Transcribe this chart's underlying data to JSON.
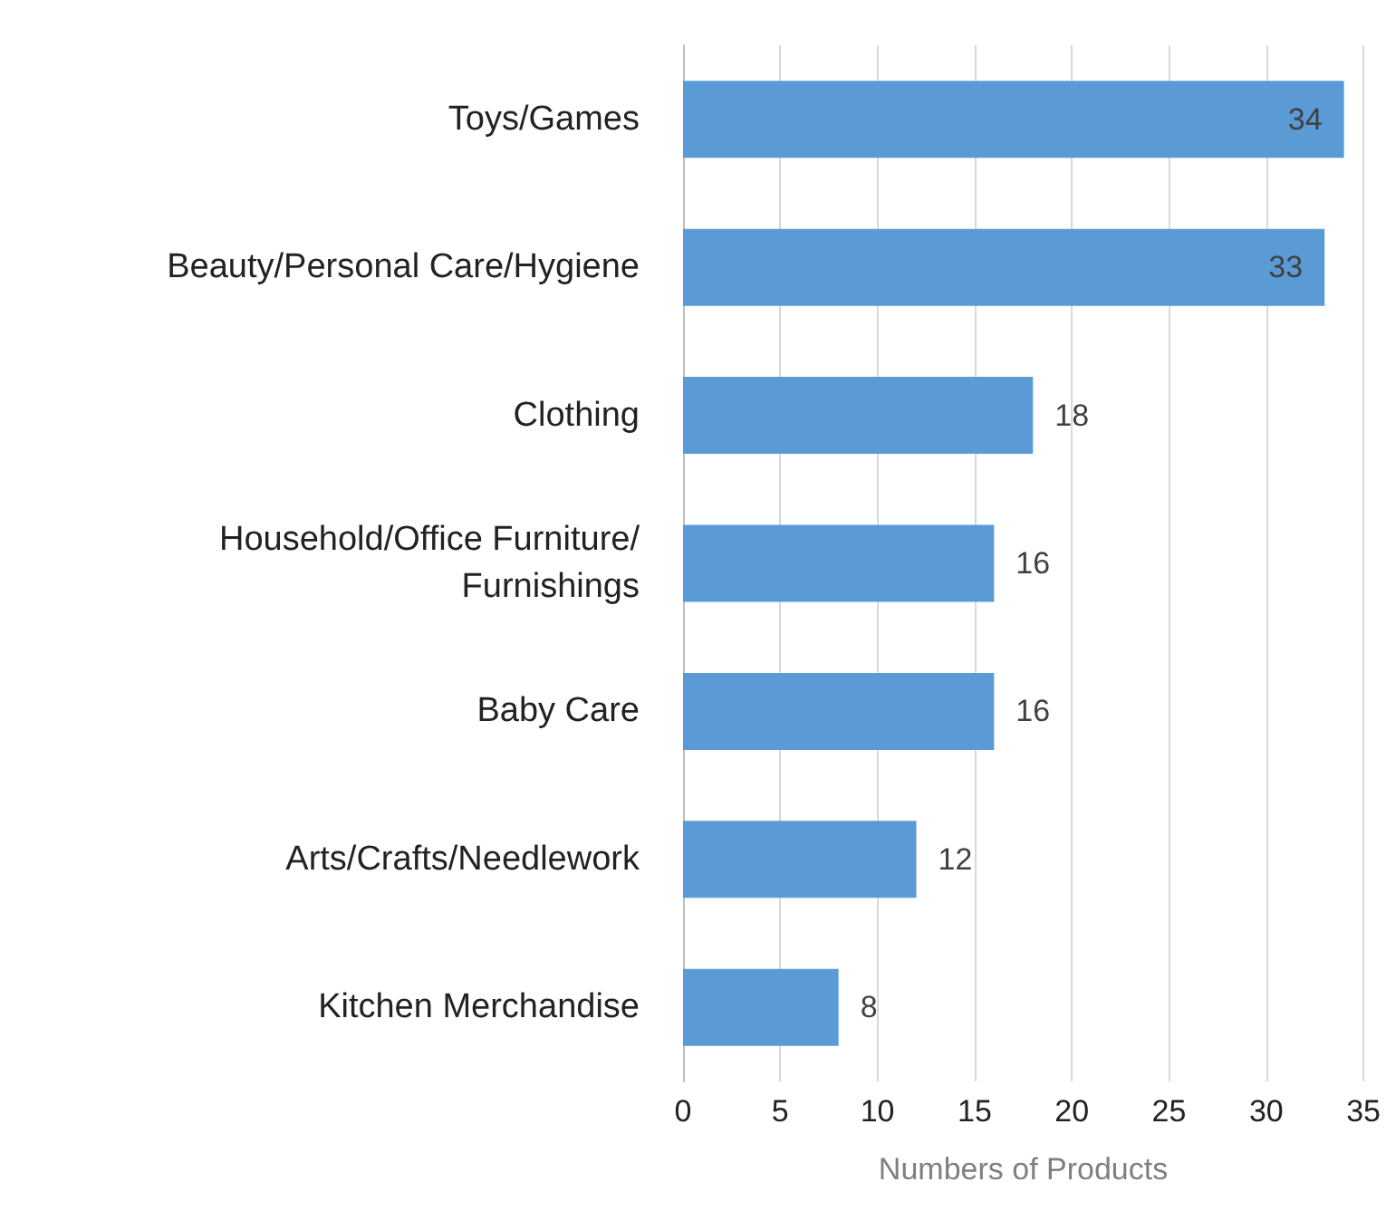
{
  "chart_data": {
    "type": "bar",
    "orientation": "horizontal",
    "xlabel": "Numbers of Products",
    "categories": [
      "Toys/Games",
      "Beauty/Personal Care/Hygiene",
      "Clothing",
      "Household/Office Furniture/Furnishings",
      "Baby Care",
      "Arts/Crafts/Needlework",
      "Kitchen Merchandise"
    ],
    "values": [
      34,
      33,
      18,
      16,
      16,
      12,
      8
    ],
    "color": "#5b9bd5",
    "xlim": [
      0,
      35
    ],
    "xticks": [
      0,
      5,
      10,
      15,
      20,
      25,
      30,
      35
    ],
    "grid": "x",
    "data_labels": true
  }
}
